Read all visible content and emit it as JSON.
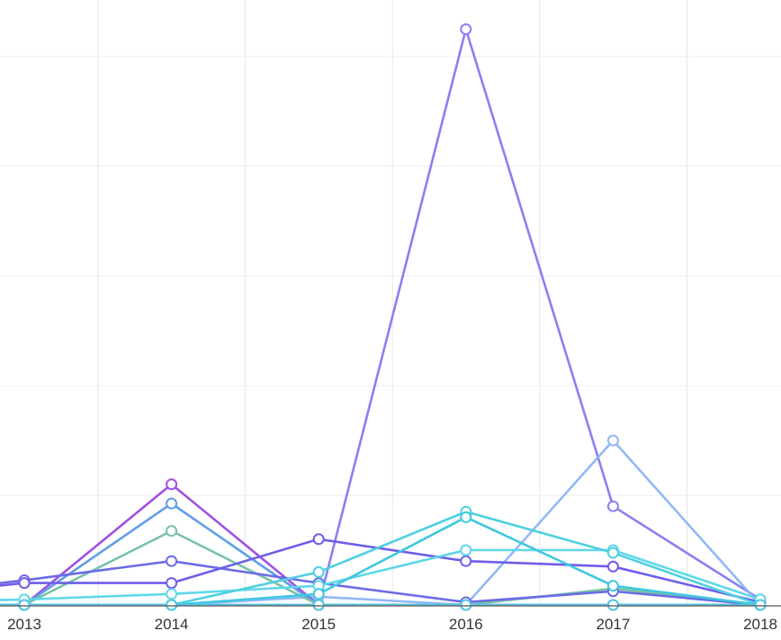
{
  "chart_data": {
    "type": "line",
    "title": "",
    "xlabel": "",
    "ylabel": "",
    "x": [
      "2013",
      "2014",
      "2015",
      "2016",
      "2017",
      "2018"
    ],
    "ylim": [
      0,
      11
    ],
    "grid": true,
    "legend": "none",
    "series": [
      {
        "color": "#8b7ff2",
        "values": [
          0,
          0,
          0,
          10.5,
          1.8,
          0.1
        ]
      },
      {
        "color": "#92b8f5",
        "values": [
          0,
          0,
          0.15,
          0,
          3.0,
          0
        ]
      },
      {
        "color": "#a050e0",
        "values": [
          0,
          2.2,
          0,
          0,
          0,
          0
        ]
      },
      {
        "color": "#5f9ee6",
        "values": [
          0,
          1.85,
          0,
          0,
          0,
          0
        ]
      },
      {
        "color": "#7ac2a4",
        "values": [
          0,
          1.35,
          0,
          0,
          0.3,
          0
        ]
      },
      {
        "color": "#6a6ce6",
        "values": [
          0.45,
          0.8,
          0.4,
          0.05,
          0.25,
          0
        ]
      },
      {
        "color": "#6e5ee8",
        "values": [
          0.4,
          0.4,
          1.2,
          0.8,
          0.7,
          0.05
        ]
      },
      {
        "color": "#5fd8e8",
        "values": [
          0.1,
          0.2,
          0.35,
          1.0,
          1.0,
          0.1
        ]
      },
      {
        "color": "#4fd0e2",
        "values": [
          0,
          0,
          0.6,
          1.7,
          0.95,
          0
        ]
      },
      {
        "color": "#3fc8e0",
        "values": [
          0,
          0,
          0.2,
          1.6,
          0.35,
          0
        ]
      },
      {
        "color": "#55c7e6",
        "values": [
          0,
          0,
          0,
          0,
          0,
          0
        ]
      }
    ]
  }
}
